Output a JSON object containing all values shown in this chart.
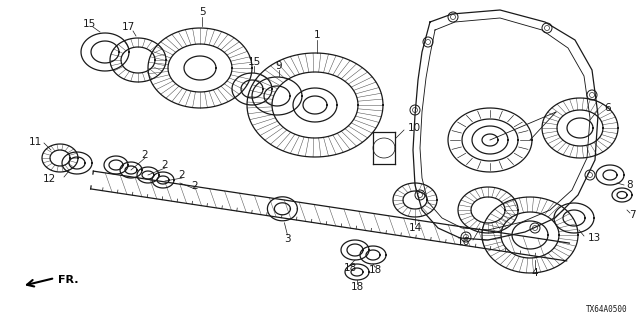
{
  "bg_color": "#ffffff",
  "diagram_code": "TX64A0500",
  "line_color": "#1a1a1a",
  "gray_fill": "#c8c8c8",
  "dark_fill": "#888888"
}
